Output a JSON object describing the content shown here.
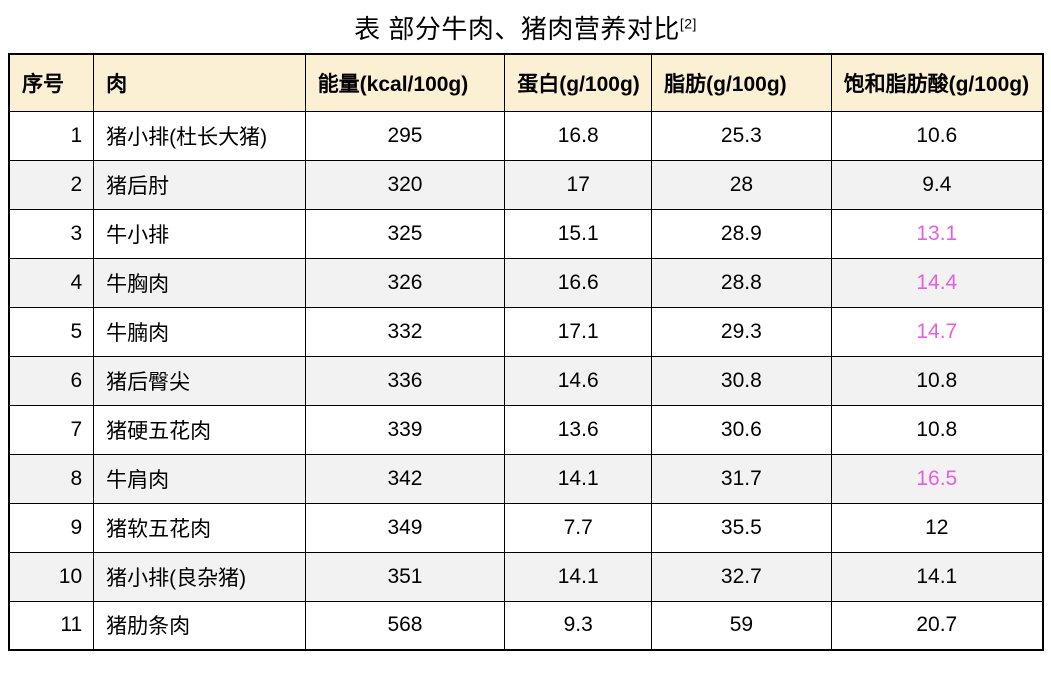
{
  "title": {
    "text": "表 部分牛肉、猪肉营养对比",
    "superscript": "[2]"
  },
  "colors": {
    "header_bg": "#FBF0D3",
    "alt_row_bg": "#F2F2F2",
    "border": "#000000",
    "text": "#000000",
    "highlight_pink": "#E65FE1"
  },
  "chart_data": {
    "type": "table",
    "title": "表 部分牛肉、猪肉营养对比[2]",
    "columns": [
      "序号",
      "肉",
      "能量(kcal/100g)",
      "蛋白(g/100g)",
      "脂肪(g/100g)",
      "饱和脂肪酸(g/100g)"
    ],
    "rows": [
      [
        1,
        "猪小排(杜长大猪)",
        295,
        16.8,
        25.3,
        10.6
      ],
      [
        2,
        "猪后肘",
        320,
        17,
        28,
        9.4
      ],
      [
        3,
        "牛小排",
        325,
        15.1,
        28.9,
        13.1
      ],
      [
        4,
        "牛胸肉",
        326,
        16.6,
        28.8,
        14.4
      ],
      [
        5,
        "牛腩肉",
        332,
        17.1,
        29.3,
        14.7
      ],
      [
        6,
        "猪后臀尖",
        336,
        14.6,
        30.8,
        10.8
      ],
      [
        7,
        "猪硬五花肉",
        339,
        13.6,
        30.6,
        10.8
      ],
      [
        8,
        "牛肩肉",
        342,
        14.1,
        31.7,
        16.5
      ],
      [
        9,
        "猪软五花肉",
        349,
        7.7,
        35.5,
        12
      ],
      [
        10,
        "猪小排(良杂猪)",
        351,
        14.1,
        32.7,
        14.1
      ],
      [
        11,
        "猪肋条肉",
        568,
        9.3,
        59,
        20.7
      ]
    ],
    "highlighted_column": "饱和脂肪酸(g/100g)",
    "highlighted_row_indices": [
      3,
      4,
      5,
      8
    ],
    "layout": {
      "header_background": "#FBF0D3",
      "zebra_striping": true,
      "grid": true
    }
  }
}
